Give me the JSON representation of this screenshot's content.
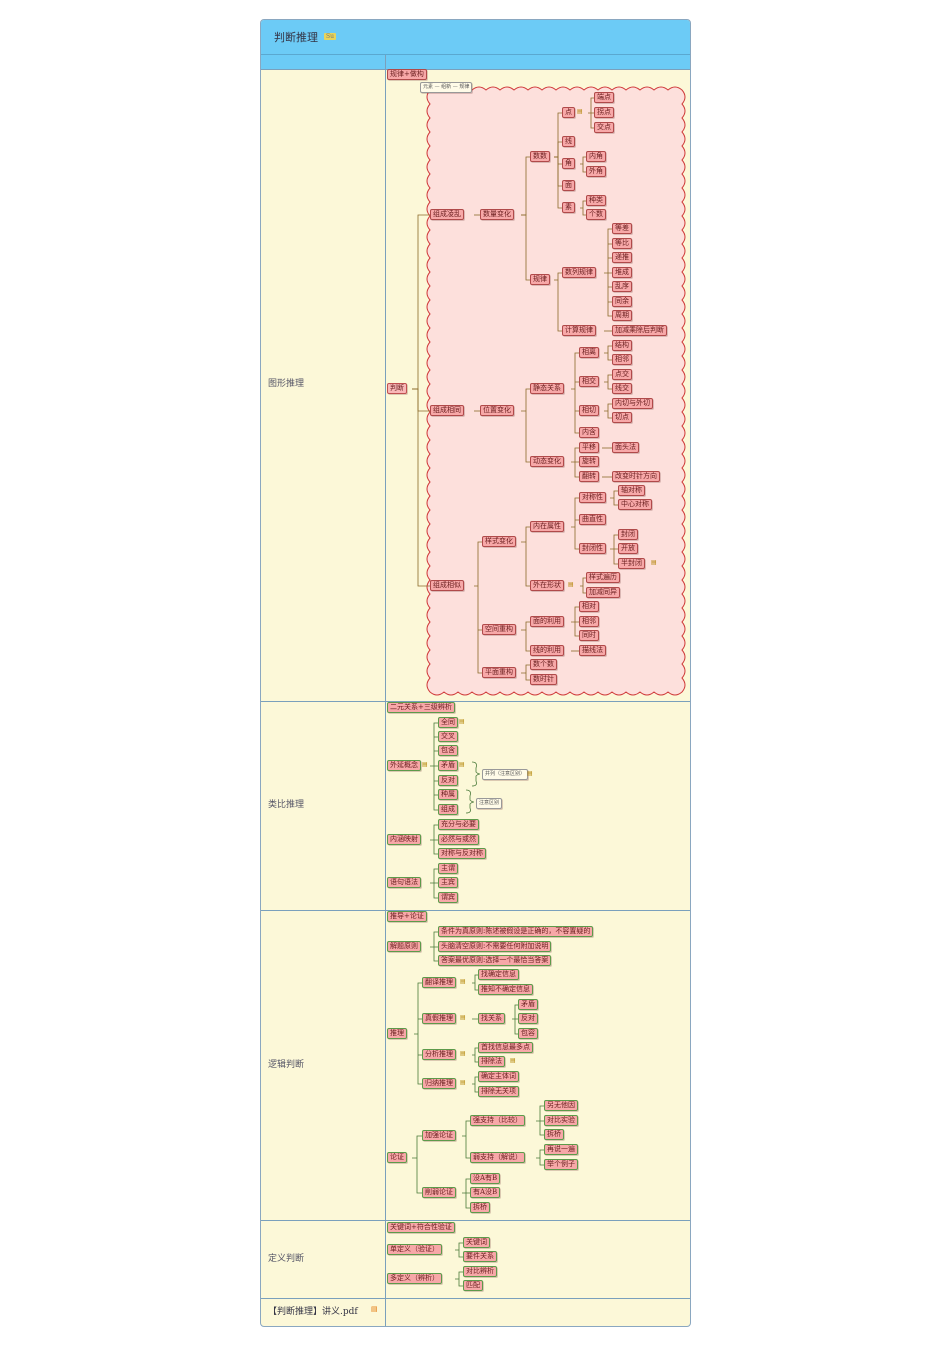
{
  "header": {
    "title": "判断推理",
    "badge": "Su"
  },
  "sections": [
    {
      "label": "图形推理"
    },
    {
      "label": "类比推理"
    },
    {
      "label": "逻辑判断"
    },
    {
      "label": "定义判断"
    }
  ],
  "footer": {
    "file": "【判断推理】讲义.pdf"
  },
  "fig": {
    "top": "规律+做构",
    "top_sub": "元素 — 组新 — 规律",
    "root": "判断",
    "b1": "组成凌乱",
    "b1a": "数量变化",
    "shu": "数数",
    "dian": "点",
    "duandian": "端点",
    "guaidian": "拐点",
    "jiaodian": "交点",
    "xian": "线",
    "jiao": "角",
    "neijiao": "内角",
    "waijiao": "外角",
    "mian": "面",
    "su": "素",
    "zhonglei": "种类",
    "geshu": "个数",
    "guilv": "规律",
    "shulie": "数列规律",
    "dengcha": "等差",
    "dengbi": "等比",
    "ditui": "递推",
    "duicheng": "堆成",
    "luanxu": "乱序",
    "tongyu": "同余",
    "zhouqi": "周期",
    "jisuan": "计算规律",
    "jiajian": "加减乘除后判断",
    "b2": "组成相同",
    "b2a": "位置变化",
    "jingtai": "静态关系",
    "xiangli": "相离",
    "jiegou": "结构",
    "xiangbu": "相邻",
    "xiangjiao": "相交",
    "dianjiao": "点交",
    "xianjiao": "线交",
    "xiangqie": "相切",
    "neiqie": "内切与外切",
    "qiedian": "切点",
    "neihan": "内含",
    "dongtai": "动态变化",
    "pingyi": "平移",
    "dianyi": "面头法",
    "xuanzhuan": "旋转",
    "fanzhuan": "翻转",
    "gaibian": "改变时针方向",
    "b3": "组成相似",
    "yangshi": "样式变化",
    "neizai": "内在属性",
    "duichenxing": "对称性",
    "zhouduichen": "轴对称",
    "zhongxin": "中心对称",
    "qumian": "曲直性",
    "fengbixing": "封闭性",
    "fengbi": "封闭",
    "kaifang": "开放",
    "banfengbi": "半封闭",
    "waizai": "外在形状",
    "yangshitd": "样式遍历",
    "jiajiantong": "加减同异",
    "kongjian": "空间重构",
    "mian_ly": "面的利用",
    "xiangdui": "相对",
    "xiangfan": "相邻",
    "fangxiang": "同时",
    "xian_ly": "线的利用",
    "huaxian": "描线法",
    "pingmian": "平面重构",
    "shugeshu": "数个数",
    "shushizhen": "数时针"
  },
  "lb": {
    "top": "二元关系+三级辨析",
    "waiyan": "外延概念",
    "quantong": "全同",
    "jiaocha": "交叉",
    "baohan": "包含",
    "maodun": "矛盾",
    "fandui": "反对",
    "zhongshu": "种属",
    "zucheng": "组成",
    "note1": "并列（注意区别）",
    "note2": "注意区别",
    "neihan": "内涵映射",
    "chongfen": "充分与必要",
    "biran": "必然与或然",
    "duichen": "对称与反对称",
    "yuju": "语句语法",
    "zhuwei": "主谓",
    "zhubin": "主宾",
    "weibin": "谓宾"
  },
  "lj": {
    "top": "推导+论证",
    "jieti": "解题原则",
    "p1": "条件为真原则:陈述被假设是正确的，不容置疑的",
    "p2": "头脑清空原则:不需要任何附加说明",
    "p3": "答案最优原则:选择一个最恰当答案",
    "tuili": "推理",
    "fanyi": "翻译推理",
    "fy1": "找确定信息",
    "fy2": "推知不确定信息",
    "zhenjia": "真假推理",
    "zhaoguanxi": "找关系",
    "zj1": "矛盾",
    "zj2": "反对",
    "zj3": "包容",
    "fenxi": "分析推理",
    "fx1": "首找信息最多点",
    "fx2": "排除法",
    "guina": "归纳推理",
    "gn1": "确定主体词",
    "gn2": "排除无关项",
    "lunzheng": "论证",
    "jiaqiang": "加强论证",
    "zhichi": "强支持（比较）",
    "zc1": "另无他因",
    "zc2": "对比实验",
    "zc3": "拆桥",
    "ruozhichi": "弱支持（解说）",
    "rz1": "再说一遍",
    "rz2": "举个例子",
    "xueruo": "削弱论证",
    "xr1": "没A有B",
    "xr2": "有A没B",
    "xr3": "拆桥"
  },
  "dy": {
    "top": "关键词+符合性验证",
    "dan": "单定义（验证）",
    "guanjian": "关键词",
    "yaojian": "要件关系",
    "duo": "多定义（辨析）",
    "duibi": "对比辨析",
    "pipei": "匹配"
  },
  "colors": {
    "titlebar": "#6ccbf6",
    "cell": "#fcf8d8",
    "node": "#f7a8a8",
    "cloud": "#fde0dc",
    "cloud_border": "#d03c3c"
  }
}
